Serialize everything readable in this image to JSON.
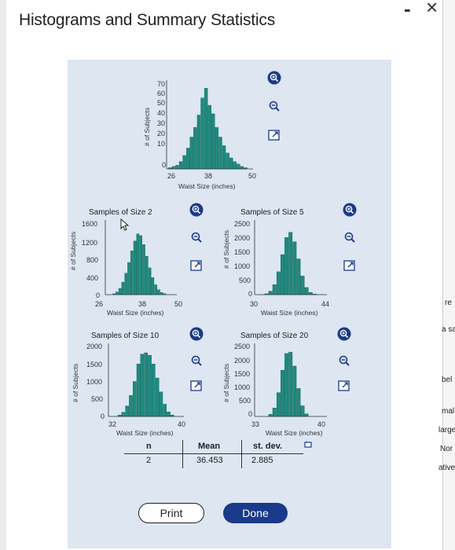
{
  "window": {
    "minimize": "-",
    "close": "×"
  },
  "dialog_title": "Histograms and Summary Statistics",
  "axis": {
    "y_label": "# of Subjects",
    "x_label": "Waist Size (inches)"
  },
  "population": {
    "y_ticks": [
      "70",
      "60",
      "50",
      "40",
      "30",
      "20",
      "10",
      "0"
    ],
    "x_ticks": [
      "26",
      "38",
      "50"
    ]
  },
  "size2": {
    "title": "Samples of Size 2",
    "y_ticks": [
      "1600",
      "1200",
      "800",
      "400",
      "0"
    ],
    "x_ticks": [
      "26",
      "38",
      "50"
    ]
  },
  "size5": {
    "title": "Samples of Size 5",
    "y_ticks": [
      "2500",
      "2000",
      "1500",
      "1000",
      "500",
      "0"
    ],
    "x_ticks": [
      "30",
      "44"
    ]
  },
  "size10": {
    "title": "Samples of Size 10",
    "y_ticks": [
      "2000",
      "1500",
      "1000",
      "500",
      "0"
    ],
    "x_ticks": [
      "32",
      "40"
    ]
  },
  "size20": {
    "title": "Samples of Size 20",
    "y_ticks": [
      "2500",
      "2000",
      "1500",
      "1000",
      "500",
      "0"
    ],
    "x_ticks": [
      "33",
      "40"
    ]
  },
  "stats": {
    "n_label": "n",
    "n_value": "2",
    "mean_label": "Mean",
    "mean_value": "36.453",
    "sd_label": "st. dev.",
    "sd_value": "2.885"
  },
  "buttons": {
    "print": "Print",
    "done": "Done"
  },
  "side_text": [
    "re",
    "a sa",
    "bel",
    "mal",
    "large",
    "Nor",
    "ativel"
  ],
  "colors": {
    "bar": "#1f8a80",
    "accent": "#1a3a8a",
    "panel": "#dde6f1"
  },
  "icons": [
    "zoom-in-icon",
    "zoom-out-icon",
    "popout-icon",
    "copy-icon"
  ],
  "chart_data": [
    {
      "type": "bar",
      "title": "",
      "xlabel": "Waist Size (inches)",
      "ylabel": "# of Subjects",
      "xlim": [
        26,
        50
      ],
      "ylim": [
        0,
        70
      ],
      "x": [
        27,
        28,
        29,
        30,
        31,
        32,
        33,
        34,
        35,
        36,
        37,
        38,
        39,
        40,
        41,
        42,
        43,
        44,
        45,
        46,
        47,
        48
      ],
      "values": [
        1,
        2,
        3,
        6,
        11,
        17,
        26,
        34,
        44,
        58,
        66,
        52,
        45,
        34,
        26,
        19,
        13,
        9,
        6,
        4,
        2,
        1
      ]
    },
    {
      "type": "bar",
      "title": "Samples of Size 2",
      "xlabel": "Waist Size (inches)",
      "ylabel": "# of Subjects",
      "xlim": [
        26,
        50
      ],
      "ylim": [
        0,
        1600
      ],
      "x": [
        29,
        30,
        31,
        32,
        33,
        34,
        35,
        36,
        37,
        38,
        39,
        40,
        41,
        42,
        43,
        44,
        45,
        46
      ],
      "values": [
        20,
        60,
        140,
        280,
        480,
        720,
        980,
        1200,
        1360,
        1320,
        1120,
        860,
        600,
        380,
        220,
        110,
        50,
        20
      ]
    },
    {
      "type": "bar",
      "title": "Samples of Size 5",
      "xlabel": "Waist Size (inches)",
      "ylabel": "# of Subjects",
      "xlim": [
        28,
        46
      ],
      "ylim": [
        0,
        2500
      ],
      "x": [
        31,
        32,
        33,
        34,
        35,
        36,
        37,
        38,
        39,
        40,
        41,
        42,
        43
      ],
      "values": [
        30,
        120,
        350,
        800,
        1400,
        2000,
        2180,
        1850,
        1250,
        650,
        250,
        80,
        20
      ]
    },
    {
      "type": "bar",
      "title": "Samples of Size 10",
      "xlabel": "Waist Size (inches)",
      "ylabel": "# of Subjects",
      "xlim": [
        31,
        41
      ],
      "ylim": [
        0,
        2000
      ],
      "x": [
        32.5,
        33,
        33.5,
        34,
        34.5,
        35,
        35.5,
        36,
        36.5,
        37,
        37.5,
        38,
        38.5,
        39,
        39.5
      ],
      "values": [
        40,
        120,
        300,
        600,
        1000,
        1500,
        1780,
        1820,
        1750,
        1500,
        1100,
        700,
        350,
        130,
        40
      ]
    },
    {
      "type": "bar",
      "title": "Samples of Size 20",
      "xlabel": "Waist Size (inches)",
      "ylabel": "# of Subjects",
      "xlim": [
        32,
        41
      ],
      "ylim": [
        0,
        2500
      ],
      "x": [
        34,
        34.5,
        35,
        35.5,
        36,
        36.5,
        37,
        37.5,
        38,
        38.5
      ],
      "values": [
        80,
        300,
        850,
        1650,
        2250,
        2300,
        1800,
        1000,
        380,
        90
      ]
    }
  ]
}
